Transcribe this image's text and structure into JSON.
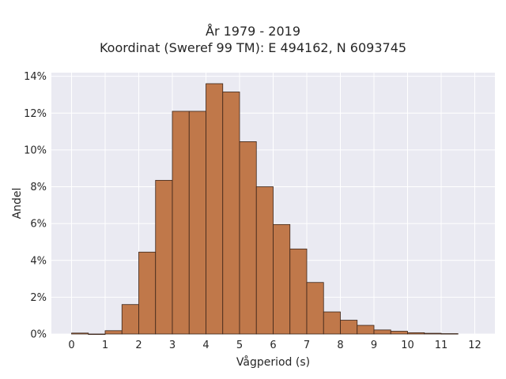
{
  "chart_data": {
    "type": "bar",
    "title_lines": [
      "År 1979 - 2019",
      "Koordinat (Sweref 99 TM): E 494162, N 6093745"
    ],
    "xlabel": "Vågperiod (s)",
    "ylabel": "Andel",
    "x_ticks": [
      "0",
      "1",
      "2",
      "3",
      "4",
      "5",
      "6",
      "7",
      "8",
      "9",
      "10",
      "11",
      "12"
    ],
    "y_ticks": [
      "0%",
      "2%",
      "4%",
      "6%",
      "8%",
      "10%",
      "12%",
      "14%"
    ],
    "xlim": [
      -0.6,
      12.6
    ],
    "ylim": [
      0,
      14.2
    ],
    "grid": true,
    "bin_width": 0.5,
    "bins": [
      {
        "x0": 0.0,
        "value": 0.05
      },
      {
        "x0": 0.5,
        "value": 0.0
      },
      {
        "x0": 1.0,
        "value": 0.18
      },
      {
        "x0": 1.5,
        "value": 1.6
      },
      {
        "x0": 2.0,
        "value": 4.45
      },
      {
        "x0": 2.5,
        "value": 8.35
      },
      {
        "x0": 3.0,
        "value": 12.1
      },
      {
        "x0": 3.5,
        "value": 12.1
      },
      {
        "x0": 4.0,
        "value": 13.6
      },
      {
        "x0": 4.5,
        "value": 13.15
      },
      {
        "x0": 5.0,
        "value": 10.45
      },
      {
        "x0": 5.5,
        "value": 8.0
      },
      {
        "x0": 6.0,
        "value": 5.95
      },
      {
        "x0": 6.5,
        "value": 4.62
      },
      {
        "x0": 7.0,
        "value": 2.8
      },
      {
        "x0": 7.5,
        "value": 1.2
      },
      {
        "x0": 8.0,
        "value": 0.75
      },
      {
        "x0": 8.5,
        "value": 0.47
      },
      {
        "x0": 9.0,
        "value": 0.22
      },
      {
        "x0": 9.5,
        "value": 0.15
      },
      {
        "x0": 10.0,
        "value": 0.07
      },
      {
        "x0": 10.5,
        "value": 0.04
      },
      {
        "x0": 11.0,
        "value": 0.02
      }
    ],
    "colors": {
      "bar_fill": "#c0784a",
      "bar_edge": "#3a2418",
      "plot_background": "#eaeaf2",
      "grid": "#ffffff"
    }
  }
}
